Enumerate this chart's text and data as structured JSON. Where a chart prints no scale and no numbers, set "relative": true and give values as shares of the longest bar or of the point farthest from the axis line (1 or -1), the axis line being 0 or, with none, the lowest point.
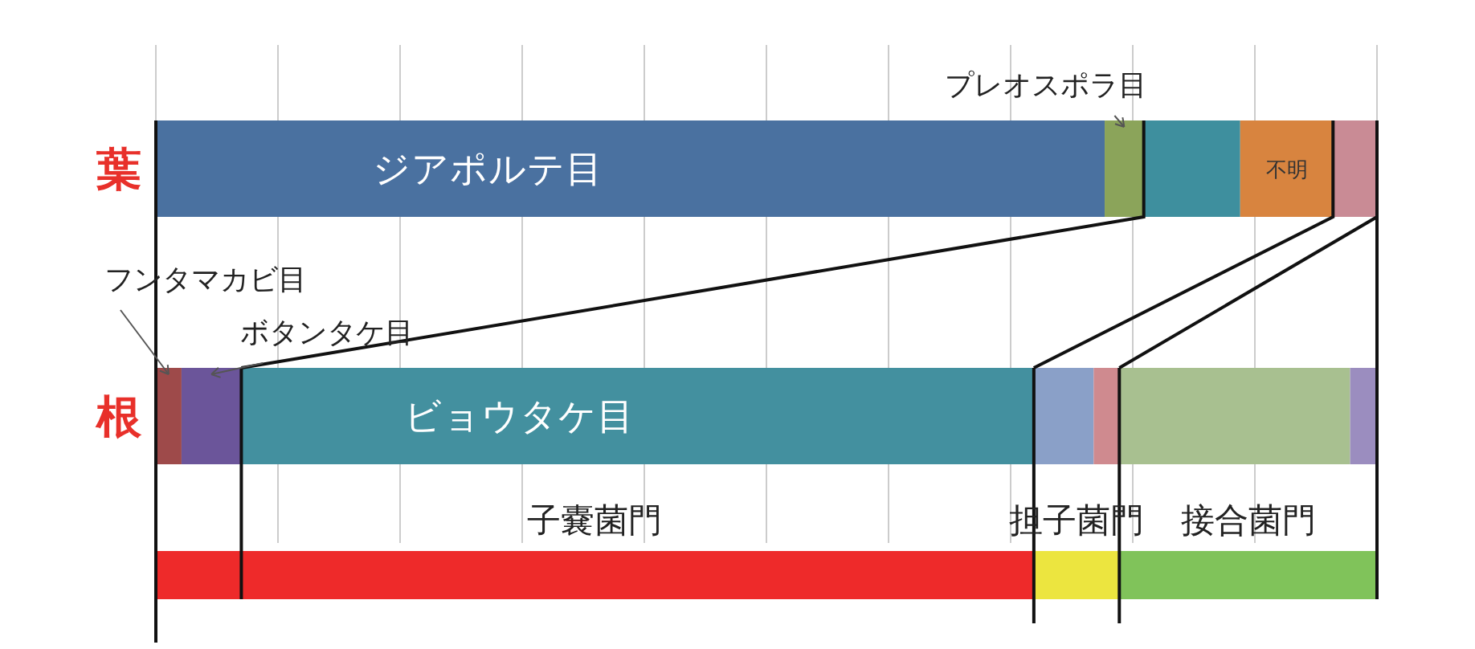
{
  "chart_data": {
    "type": "bar",
    "orientation": "horizontal",
    "stacked": true,
    "relative": true,
    "grid": "x",
    "categories": [
      "葉",
      "根",
      null
    ],
    "series": [
      {
        "name": "ジアポルテ目",
        "color": "#4a71a0",
        "values": [
          0.777,
          null,
          null
        ]
      },
      {
        "name": "プレオスポラ目",
        "color": "#8ba45a",
        "values": [
          0.032,
          null,
          null
        ]
      },
      {
        "color": "#3e8f9e",
        "values": [
          0.079,
          null,
          null
        ]
      },
      {
        "name": "不明",
        "color": "#d8843f",
        "values": [
          0.076,
          null,
          null
        ]
      },
      {
        "color": "#c98b95",
        "values": [
          0.036,
          null,
          null
        ]
      },
      {
        "name": "フンタマカビ目",
        "color": "#9e4a4a",
        "values": [
          null,
          0.021,
          null
        ]
      },
      {
        "name": "ボタンタケ目",
        "color": "#6b559a",
        "values": [
          null,
          0.049,
          null
        ]
      },
      {
        "name": "ビョウタケ目",
        "color": "#43909f",
        "values": [
          null,
          0.649,
          null
        ]
      },
      {
        "color": "#8aa0c8",
        "values": [
          null,
          0.049,
          null
        ]
      },
      {
        "color": "#cf8a8f",
        "values": [
          null,
          0.021,
          null
        ]
      },
      {
        "color": "#a8c090",
        "values": [
          null,
          0.189,
          null
        ]
      },
      {
        "color": "#9b8dbf",
        "values": [
          null,
          0.022,
          null
        ]
      },
      {
        "name": "子嚢菌門",
        "color": "#ee2a2a",
        "values": [
          null,
          null,
          0.719
        ]
      },
      {
        "name": "担子菌門",
        "color": "#ece53f",
        "values": [
          null,
          null,
          0.07
        ]
      },
      {
        "name": "接合菌門",
        "color": "#80c35a",
        "values": [
          null,
          null,
          0.211
        ]
      }
    ]
  }
}
